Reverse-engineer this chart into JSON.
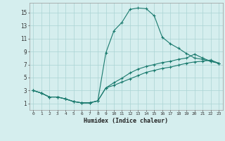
{
  "xlabel": "Humidex (Indice chaleur)",
  "background_color": "#d5eeee",
  "grid_color": "#aad4d4",
  "line_color": "#1a7a6e",
  "xlim": [
    -0.5,
    23.5
  ],
  "ylim": [
    0,
    16.5
  ],
  "xtick_labels": [
    "0",
    "1",
    "2",
    "3",
    "4",
    "5",
    "6",
    "7",
    "8",
    "9",
    "10",
    "11",
    "12",
    "13",
    "14",
    "15",
    "16",
    "17",
    "18",
    "19",
    "20",
    "21",
    "22",
    "23"
  ],
  "xtick_pos": [
    0,
    1,
    2,
    3,
    4,
    5,
    6,
    7,
    8,
    9,
    10,
    11,
    12,
    13,
    14,
    15,
    16,
    17,
    18,
    19,
    20,
    21,
    22,
    23
  ],
  "ytick_labels": [
    "1",
    "3",
    "5",
    "7",
    "9",
    "11",
    "13",
    "15"
  ],
  "ytick_pos": [
    1,
    3,
    5,
    7,
    9,
    11,
    13,
    15
  ],
  "line1_x": [
    0,
    1,
    2,
    3,
    4,
    5,
    6,
    7,
    8,
    9,
    10,
    11,
    12,
    13,
    14,
    15,
    16,
    17,
    18,
    19,
    20,
    21,
    22,
    23
  ],
  "line1_y": [
    3.0,
    2.6,
    2.0,
    2.0,
    1.7,
    1.3,
    1.1,
    1.1,
    1.4,
    8.8,
    12.2,
    13.5,
    15.5,
    15.7,
    15.6,
    14.5,
    11.2,
    10.2,
    9.5,
    8.7,
    8.0,
    7.8,
    7.5,
    7.2
  ],
  "line2_x": [
    0,
    1,
    2,
    3,
    4,
    5,
    6,
    7,
    8,
    9,
    10,
    11,
    12,
    13,
    14,
    15,
    16,
    17,
    18,
    19,
    20,
    21,
    22,
    23
  ],
  "line2_y": [
    3.0,
    2.6,
    2.0,
    2.0,
    1.7,
    1.3,
    1.1,
    1.1,
    1.4,
    3.4,
    4.2,
    4.9,
    5.7,
    6.3,
    6.7,
    7.0,
    7.3,
    7.5,
    7.8,
    8.0,
    8.6,
    8.0,
    7.5,
    7.2
  ],
  "line3_x": [
    0,
    1,
    2,
    3,
    4,
    5,
    6,
    7,
    8,
    9,
    10,
    11,
    12,
    13,
    14,
    15,
    16,
    17,
    18,
    19,
    20,
    21,
    22,
    23
  ],
  "line3_y": [
    3.0,
    2.6,
    2.0,
    2.0,
    1.7,
    1.3,
    1.1,
    1.1,
    1.4,
    3.4,
    3.8,
    4.3,
    4.8,
    5.3,
    5.8,
    6.1,
    6.4,
    6.6,
    6.9,
    7.2,
    7.4,
    7.5,
    7.7,
    7.2
  ]
}
